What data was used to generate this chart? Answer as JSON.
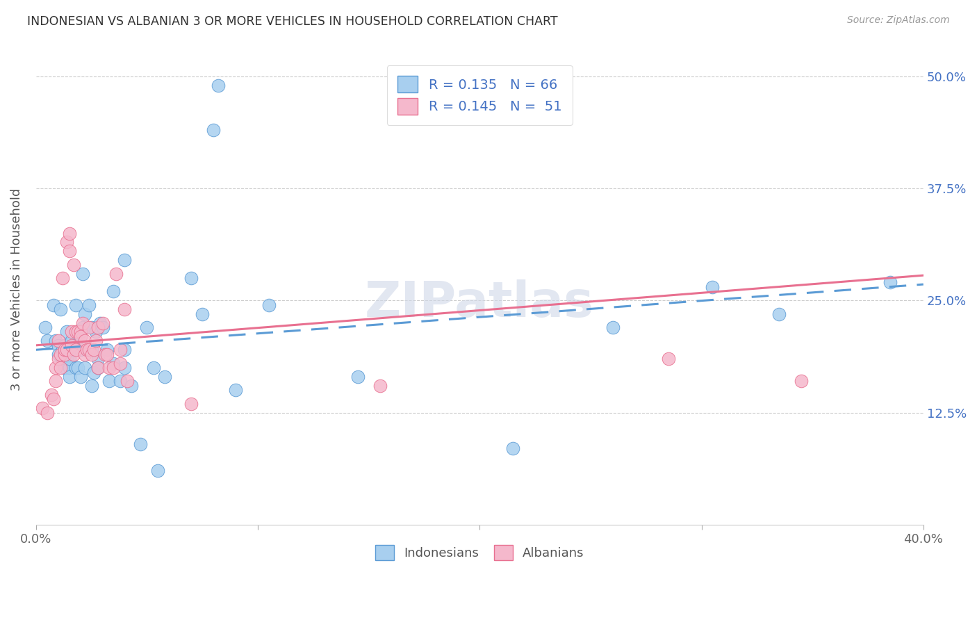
{
  "title": "INDONESIAN VS ALBANIAN 3 OR MORE VEHICLES IN HOUSEHOLD CORRELATION CHART",
  "source": "Source: ZipAtlas.com",
  "ylabel": "3 or more Vehicles in Household",
  "ytick_labels": [
    "",
    "12.5%",
    "25.0%",
    "37.5%",
    "50.0%"
  ],
  "ytick_values": [
    0.0,
    0.125,
    0.25,
    0.375,
    0.5
  ],
  "xmin": 0.0,
  "xmax": 0.4,
  "ymin": 0.0,
  "ymax": 0.525,
  "R_indonesian": 0.135,
  "N_indonesian": 66,
  "R_albanian": 0.145,
  "N_albanian": 51,
  "color_indonesian": "#A8CFEF",
  "color_albanian": "#F5B8CC",
  "color_line_indonesian": "#5B9BD5",
  "color_line_albanian": "#E87090",
  "watermark": "ZIPatlas",
  "legend_label_indonesian": "Indonesians",
  "legend_label_albanian": "Albanians",
  "line_ind_x0": 0.0,
  "line_ind_y0": 0.195,
  "line_ind_x1": 0.4,
  "line_ind_y1": 0.268,
  "line_alb_x0": 0.0,
  "line_alb_y0": 0.2,
  "line_alb_x1": 0.4,
  "line_alb_y1": 0.278,
  "indonesian_x": [
    0.004,
    0.005,
    0.008,
    0.009,
    0.01,
    0.01,
    0.011,
    0.012,
    0.012,
    0.013,
    0.013,
    0.013,
    0.014,
    0.014,
    0.015,
    0.015,
    0.015,
    0.016,
    0.016,
    0.017,
    0.018,
    0.018,
    0.019,
    0.02,
    0.02,
    0.021,
    0.021,
    0.022,
    0.022,
    0.023,
    0.024,
    0.025,
    0.025,
    0.025,
    0.026,
    0.027,
    0.028,
    0.028,
    0.029,
    0.03,
    0.032,
    0.033,
    0.035,
    0.035,
    0.038,
    0.04,
    0.04,
    0.04,
    0.043,
    0.047,
    0.05,
    0.053,
    0.055,
    0.058,
    0.07,
    0.075,
    0.08,
    0.082,
    0.09,
    0.105,
    0.145,
    0.215,
    0.26,
    0.305,
    0.335,
    0.385
  ],
  "indonesian_y": [
    0.22,
    0.205,
    0.245,
    0.205,
    0.2,
    0.19,
    0.24,
    0.185,
    0.195,
    0.2,
    0.185,
    0.175,
    0.215,
    0.185,
    0.175,
    0.185,
    0.165,
    0.195,
    0.205,
    0.2,
    0.245,
    0.175,
    0.175,
    0.165,
    0.195,
    0.28,
    0.22,
    0.175,
    0.235,
    0.195,
    0.245,
    0.155,
    0.195,
    0.22,
    0.17,
    0.215,
    0.185,
    0.175,
    0.225,
    0.22,
    0.195,
    0.16,
    0.26,
    0.18,
    0.16,
    0.295,
    0.195,
    0.175,
    0.155,
    0.09,
    0.22,
    0.175,
    0.06,
    0.165,
    0.275,
    0.235,
    0.44,
    0.49,
    0.15,
    0.245,
    0.165,
    0.085,
    0.22,
    0.265,
    0.235,
    0.27
  ],
  "albanian_x": [
    0.003,
    0.005,
    0.007,
    0.008,
    0.009,
    0.009,
    0.01,
    0.01,
    0.011,
    0.011,
    0.012,
    0.013,
    0.013,
    0.014,
    0.014,
    0.015,
    0.015,
    0.016,
    0.016,
    0.017,
    0.017,
    0.018,
    0.018,
    0.019,
    0.02,
    0.02,
    0.021,
    0.022,
    0.022,
    0.023,
    0.024,
    0.024,
    0.025,
    0.026,
    0.027,
    0.028,
    0.028,
    0.03,
    0.031,
    0.032,
    0.033,
    0.035,
    0.036,
    0.038,
    0.038,
    0.04,
    0.041,
    0.07,
    0.155,
    0.285,
    0.345
  ],
  "albanian_y": [
    0.13,
    0.125,
    0.145,
    0.14,
    0.175,
    0.16,
    0.205,
    0.185,
    0.19,
    0.175,
    0.275,
    0.19,
    0.195,
    0.195,
    0.315,
    0.305,
    0.325,
    0.2,
    0.215,
    0.29,
    0.19,
    0.195,
    0.215,
    0.215,
    0.215,
    0.21,
    0.225,
    0.205,
    0.19,
    0.195,
    0.195,
    0.22,
    0.19,
    0.195,
    0.205,
    0.175,
    0.22,
    0.225,
    0.19,
    0.19,
    0.175,
    0.175,
    0.28,
    0.18,
    0.195,
    0.24,
    0.16,
    0.135,
    0.155,
    0.185,
    0.16
  ]
}
